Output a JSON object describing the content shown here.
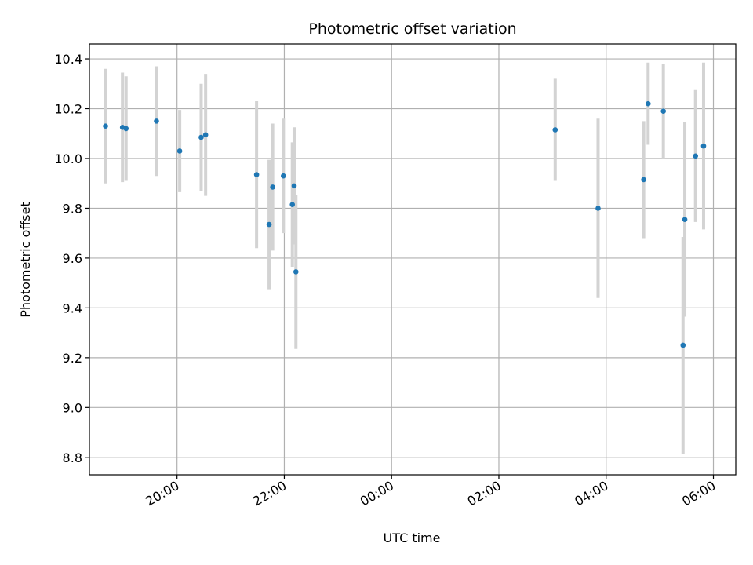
{
  "chart_data": {
    "type": "scatter",
    "title": "Photometric offset variation",
    "xlabel": "UTC time",
    "ylabel": "Photometric offset",
    "grid": true,
    "x_ticks": [
      "20:00",
      "22:00",
      "00:00",
      "02:00",
      "04:00",
      "06:00"
    ],
    "y_ticks": [
      "8.8",
      "9.0",
      "9.2",
      "9.4",
      "9.6",
      "9.8",
      "10.0",
      "10.2",
      "10.4"
    ],
    "ylim": [
      8.73,
      10.46
    ],
    "xlim": [
      "18:22",
      "06:25 (next day)"
    ],
    "x_unit": "UTC time (HH:MM)",
    "series": [
      {
        "marker_color": "#1f77b4",
        "errorbar_color": "#d3d3d3",
        "points": [
          {
            "x": "18:40",
            "y": 10.13,
            "err": 0.23
          },
          {
            "x": "18:59",
            "y": 10.125,
            "err": 0.22
          },
          {
            "x": "19:03",
            "y": 10.12,
            "err": 0.21
          },
          {
            "x": "19:37",
            "y": 10.15,
            "err": 0.22
          },
          {
            "x": "20:03",
            "y": 10.03,
            "err": 0.165
          },
          {
            "x": "20:27",
            "y": 10.085,
            "err": 0.215
          },
          {
            "x": "20:32",
            "y": 10.095,
            "err": 0.245
          },
          {
            "x": "21:29",
            "y": 9.935,
            "err": 0.295
          },
          {
            "x": "21:43",
            "y": 9.735,
            "err": 0.26
          },
          {
            "x": "21:47",
            "y": 9.885,
            "err": 0.255
          },
          {
            "x": "21:59",
            "y": 9.93,
            "err": 0.23
          },
          {
            "x": "22:09",
            "y": 9.815,
            "err": 0.25
          },
          {
            "x": "22:11",
            "y": 9.89,
            "err": 0.235
          },
          {
            "x": "22:13",
            "y": 9.545,
            "err": 0.31
          },
          {
            "x": "03:03",
            "y": 10.115,
            "err": 0.205
          },
          {
            "x": "03:51",
            "y": 9.8,
            "err": 0.36
          },
          {
            "x": "04:42",
            "y": 9.915,
            "err": 0.235
          },
          {
            "x": "04:47",
            "y": 10.22,
            "err": 0.165
          },
          {
            "x": "05:04",
            "y": 10.19,
            "err": 0.19
          },
          {
            "x": "05:26",
            "y": 9.25,
            "err": 0.435
          },
          {
            "x": "05:28",
            "y": 9.755,
            "err": 0.39
          },
          {
            "x": "05:40",
            "y": 10.01,
            "err": 0.265
          },
          {
            "x": "05:49",
            "y": 10.05,
            "err": 0.335
          }
        ]
      }
    ]
  }
}
